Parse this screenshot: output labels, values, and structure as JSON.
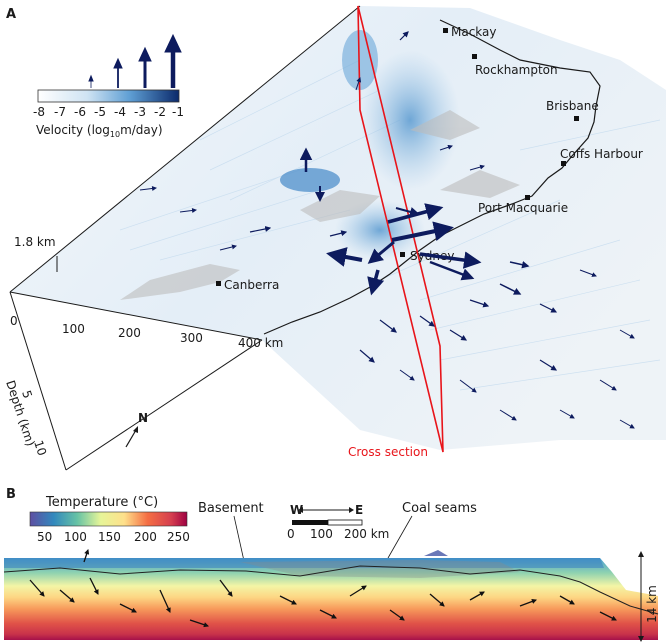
{
  "panel_a": {
    "label": "A",
    "legend": {
      "ticks": [
        "-8",
        "-7",
        "-6",
        "-5",
        "-4",
        "-3",
        "-2",
        "-1"
      ],
      "title_prefix": "Velocity (log",
      "title_sub": "10",
      "title_suffix": "m/day)"
    },
    "cities": [
      "Mackay",
      "Rockhampton",
      "Brisbane",
      "Coffs Harbour",
      "Port Macquarie",
      "Sydney",
      "Canberra"
    ],
    "scale": {
      "height": "1.8 km",
      "horizontal_ticks": [
        "0",
        "100",
        "200",
        "300",
        "400 km"
      ],
      "depth_ticks": [
        "5",
        "10"
      ],
      "depth_label": "Depth (km)"
    },
    "north": "N",
    "cross_section_label": "Cross section",
    "colors": {
      "cross_section": "#e8141a",
      "arrow": "#0d1b5e"
    }
  },
  "panel_b": {
    "label": "B",
    "colorbar": {
      "title": "Temperature (°C)",
      "ticks": [
        "50",
        "100",
        "150",
        "200",
        "250"
      ]
    },
    "annotations": {
      "basement": "Basement",
      "coal": "Coal seams"
    },
    "compass": {
      "west": "W",
      "east": "E"
    },
    "scalebar": [
      "0",
      "100",
      "200 km"
    ],
    "depth": "14 km"
  }
}
